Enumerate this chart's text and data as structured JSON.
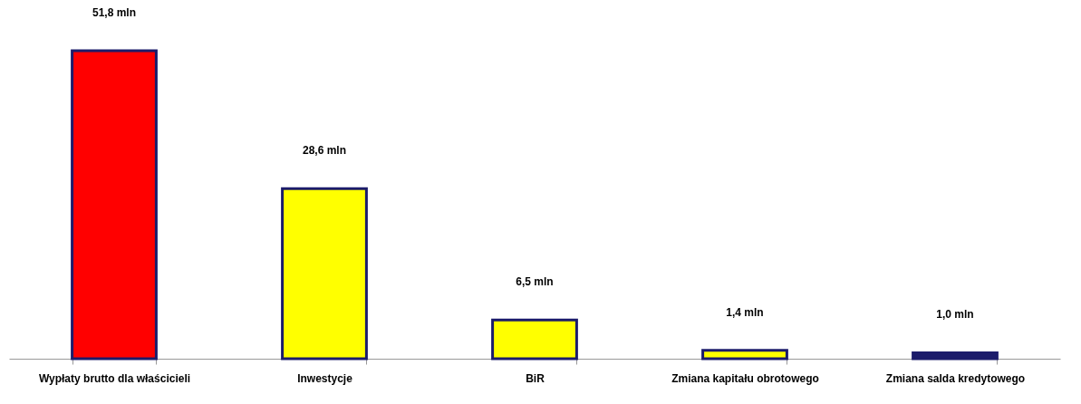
{
  "chart_data": {
    "type": "bar",
    "categories": [
      "Wypłaty brutto dla właścicieli",
      "Inwestycje",
      "BiR",
      "Zmiana kapitału obrotowego",
      "Zmiana salda kredytowego"
    ],
    "values": [
      51.8,
      28.6,
      6.5,
      1.4,
      1.0
    ],
    "value_labels": [
      "51,8 mln",
      "28,6 mln",
      "6,5 mln",
      "1,4 mln",
      "1,0 mln"
    ],
    "colors": [
      "#ff0000",
      "#ffff00",
      "#ffff00",
      "#ffff00",
      "#1c1c6b"
    ]
  }
}
